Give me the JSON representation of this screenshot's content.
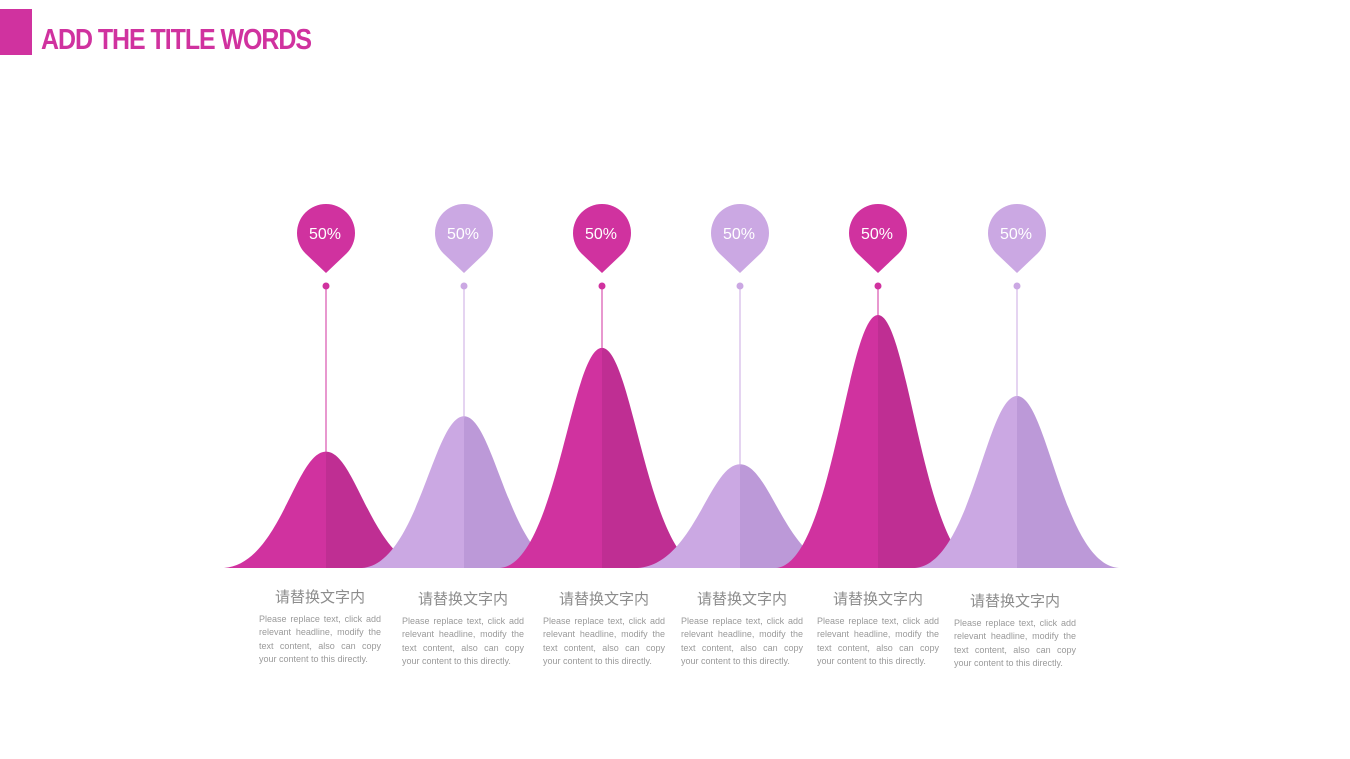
{
  "title": "ADD THE TITLE WORDS",
  "colors": {
    "magenta": "#d0329f",
    "magenta_dark": "#bf2e93",
    "lavender": "#cba8e3",
    "lavender_dark": "#bc99d8",
    "text": "#9a9a9a"
  },
  "items": [
    {
      "value": "50%",
      "level": 0.46,
      "color": "magenta",
      "heading": "请替换文字内",
      "text": "Please replace text, click add relevant headline, modify the text content, also can copy your content to this directly."
    },
    {
      "value": "50%",
      "level": 0.6,
      "color": "lavender",
      "heading": "请替换文字内",
      "text": "Please replace text, click add relevant headline, modify the text content, also can copy your content to this directly."
    },
    {
      "value": "50%",
      "level": 0.87,
      "color": "magenta",
      "heading": "请替换文字内",
      "text": "Please replace text, click add relevant headline, modify the text content, also can copy your content to this directly."
    },
    {
      "value": "50%",
      "level": 0.41,
      "color": "lavender",
      "heading": "请替换文字内",
      "text": "Please replace text, click add relevant headline, modify the text content, also can copy your content to this directly."
    },
    {
      "value": "50%",
      "level": 1.0,
      "color": "magenta",
      "heading": "请替换文字内",
      "text": "Please replace text, click add relevant headline, modify the text content, also can copy your content to this directly."
    },
    {
      "value": "50%",
      "level": 0.68,
      "color": "lavender",
      "heading": "请替换文字内",
      "text": "Please replace text, click add relevant headline, modify the text content, also can copy your content to this directly."
    }
  ]
}
